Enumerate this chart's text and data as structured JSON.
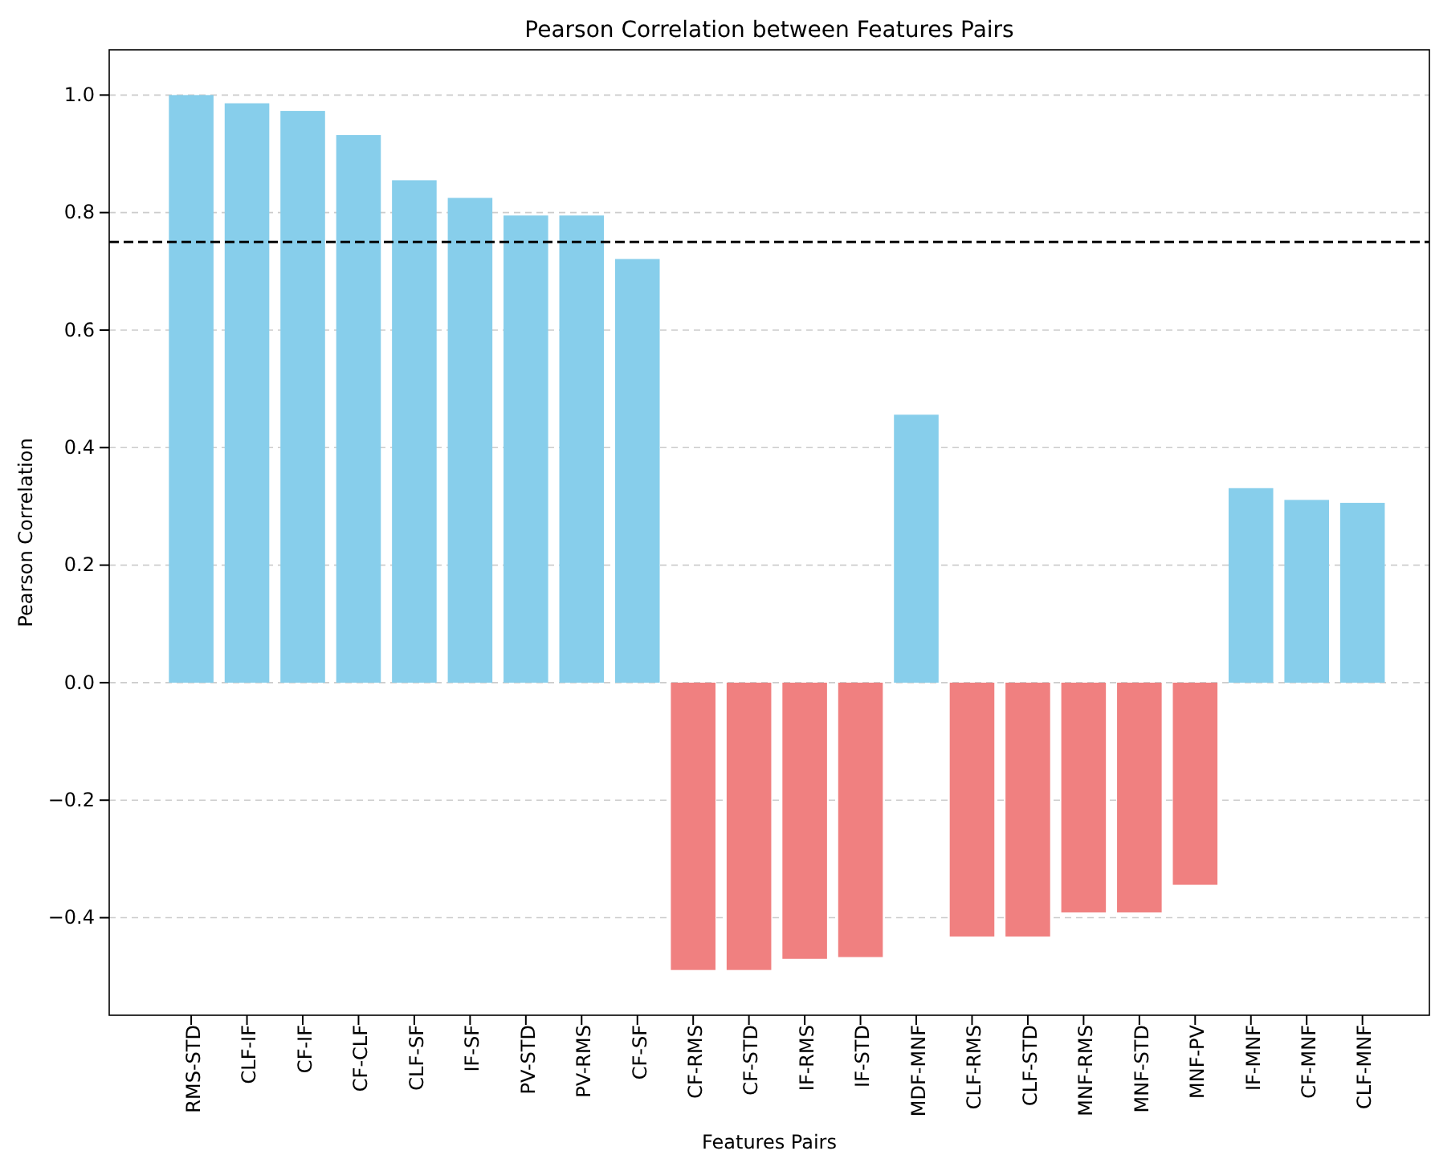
{
  "chart_data": {
    "type": "bar",
    "title": "Pearson Correlation between Features Pairs",
    "xlabel": "Features Pairs",
    "ylabel": "Pearson Correlation",
    "categories": [
      "RMS-STD",
      "CLF-IF",
      "CF-IF",
      "CF-CLF",
      "CLF-SF",
      "IF-SF",
      "PV-STD",
      "PV-RMS",
      "CF-SF",
      "CF-RMS",
      "CF-STD",
      "IF-RMS",
      "IF-STD",
      "MDF-MNF",
      "CLF-RMS",
      "CLF-STD",
      "MNF-RMS",
      "MNF-STD",
      "MNF-PV",
      "IF-MNF",
      "CF-MNF",
      "CLF-MNF"
    ],
    "values": [
      1.0,
      0.986,
      0.973,
      0.932,
      0.855,
      0.825,
      0.795,
      0.795,
      0.721,
      -0.489,
      -0.489,
      -0.47,
      -0.467,
      0.456,
      -0.432,
      -0.432,
      -0.391,
      -0.391,
      -0.344,
      0.331,
      0.311,
      0.306
    ],
    "colors": [
      "#87ceeb",
      "#87ceeb",
      "#87ceeb",
      "#87ceeb",
      "#87ceeb",
      "#87ceeb",
      "#87ceeb",
      "#87ceeb",
      "#87ceeb",
      "#f08080",
      "#f08080",
      "#f08080",
      "#f08080",
      "#87ceeb",
      "#f08080",
      "#f08080",
      "#f08080",
      "#f08080",
      "#f08080",
      "#87ceeb",
      "#87ceeb",
      "#87ceeb"
    ],
    "ylim": [
      -0.566,
      1.077
    ],
    "yticks": [
      {
        "value": -0.4,
        "label": "−0.4"
      },
      {
        "value": -0.2,
        "label": "−0.2"
      },
      {
        "value": 0,
        "label": "0.0"
      },
      {
        "value": 0.2,
        "label": "0.2"
      },
      {
        "value": 0.4,
        "label": "0.4"
      },
      {
        "value": 0.6,
        "label": "0.6"
      },
      {
        "value": 0.8,
        "label": "0.8"
      },
      {
        "value": 1,
        "label": "1.0"
      }
    ],
    "grid": "y",
    "ref_lines": [
      {
        "axis": "y",
        "value": 0.75,
        "color": "#000000",
        "line_style": "dashed"
      }
    ]
  }
}
